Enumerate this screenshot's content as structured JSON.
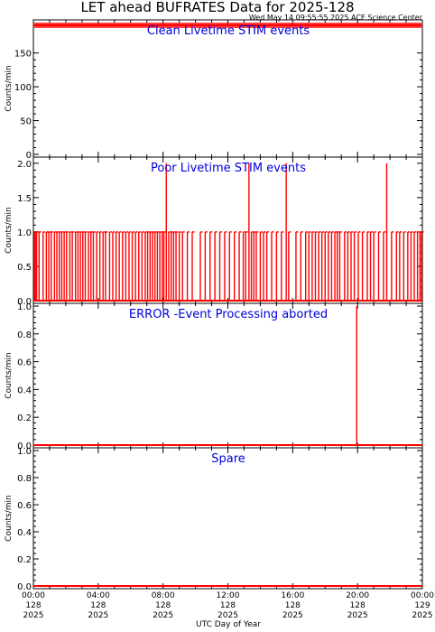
{
  "title": "LET ahead BUFRATES Data for 2025-128",
  "timestamp": "Wed May 14 09:55:55 2025 ACE Science Center",
  "xlabel": "UTC Day of Year",
  "colors": {
    "trace": "#ff0000",
    "panel_title": "#0000dd",
    "axes": "#000000"
  },
  "x_ticks": [
    {
      "hour": 0,
      "time": "00:00",
      "doy": "128",
      "year": "2025"
    },
    {
      "hour": 4,
      "time": "04:00",
      "doy": "128",
      "year": "2025"
    },
    {
      "hour": 8,
      "time": "08:00",
      "doy": "128",
      "year": "2025"
    },
    {
      "hour": 12,
      "time": "12:00",
      "doy": "128",
      "year": "2025"
    },
    {
      "hour": 16,
      "time": "16:00",
      "doy": "128",
      "year": "2025"
    },
    {
      "hour": 20,
      "time": "20:00",
      "doy": "128",
      "year": "2025"
    },
    {
      "hour": 24,
      "time": "00:00",
      "doy": "129",
      "year": "2025"
    }
  ],
  "chart_data": [
    {
      "type": "line",
      "title": "Clean Livetime STIM events",
      "ylabel": "Counts/min",
      "ylim": [
        0,
        195
      ],
      "yticks": [
        0,
        50,
        100,
        150
      ],
      "xlim": [
        0,
        24
      ],
      "series": [
        {
          "x": [
            0,
            24
          ],
          "y": [
            191,
            191
          ]
        }
      ]
    },
    {
      "type": "line",
      "title": "Poor Livetime STIM events",
      "ylabel": "Counts/min",
      "ylim": [
        0,
        2.05
      ],
      "yticks": [
        "0.0",
        "0.5",
        "1.0",
        "1.5",
        "2.0"
      ],
      "xlim": [
        0,
        24
      ],
      "baseline": 0,
      "spikes": [
        [
          0.05,
          1
        ],
        [
          0.12,
          1
        ],
        [
          0.2,
          1
        ],
        [
          0.35,
          1
        ],
        [
          0.6,
          1
        ],
        [
          0.8,
          1
        ],
        [
          0.95,
          1
        ],
        [
          1.1,
          1
        ],
        [
          1.3,
          1
        ],
        [
          1.45,
          1
        ],
        [
          1.6,
          1
        ],
        [
          1.75,
          1
        ],
        [
          1.9,
          1
        ],
        [
          2.05,
          1
        ],
        [
          2.25,
          1
        ],
        [
          2.4,
          1
        ],
        [
          2.6,
          1
        ],
        [
          2.75,
          1
        ],
        [
          2.9,
          1
        ],
        [
          3.05,
          1
        ],
        [
          3.2,
          1
        ],
        [
          3.4,
          1
        ],
        [
          3.55,
          1
        ],
        [
          3.7,
          1
        ],
        [
          3.9,
          1
        ],
        [
          4.1,
          1
        ],
        [
          4.3,
          1
        ],
        [
          4.45,
          1
        ],
        [
          4.7,
          1
        ],
        [
          4.9,
          1
        ],
        [
          5.1,
          1
        ],
        [
          5.3,
          1
        ],
        [
          5.5,
          1
        ],
        [
          5.7,
          1
        ],
        [
          5.9,
          1
        ],
        [
          6.1,
          1
        ],
        [
          6.3,
          1
        ],
        [
          6.5,
          1
        ],
        [
          6.7,
          1
        ],
        [
          6.9,
          1
        ],
        [
          7.05,
          1
        ],
        [
          7.2,
          1
        ],
        [
          7.35,
          1
        ],
        [
          7.5,
          1
        ],
        [
          7.65,
          1
        ],
        [
          7.8,
          1
        ],
        [
          7.95,
          1
        ],
        [
          8.05,
          1
        ],
        [
          8.2,
          2
        ],
        [
          8.35,
          1
        ],
        [
          8.5,
          1
        ],
        [
          8.65,
          1
        ],
        [
          8.8,
          1
        ],
        [
          9.0,
          1
        ],
        [
          9.2,
          1
        ],
        [
          9.5,
          1
        ],
        [
          9.8,
          1
        ],
        [
          10.3,
          1
        ],
        [
          10.6,
          1
        ],
        [
          10.9,
          1
        ],
        [
          11.2,
          1
        ],
        [
          11.5,
          1
        ],
        [
          11.8,
          1
        ],
        [
          12.1,
          1
        ],
        [
          12.4,
          1
        ],
        [
          12.7,
          1
        ],
        [
          12.95,
          1
        ],
        [
          13.1,
          1
        ],
        [
          13.3,
          2
        ],
        [
          13.45,
          1
        ],
        [
          13.6,
          1
        ],
        [
          13.75,
          1
        ],
        [
          14.0,
          1
        ],
        [
          14.2,
          1
        ],
        [
          14.4,
          1
        ],
        [
          14.7,
          1
        ],
        [
          15.0,
          1
        ],
        [
          15.3,
          1
        ],
        [
          15.6,
          2
        ],
        [
          15.75,
          1
        ],
        [
          16.2,
          1
        ],
        [
          16.5,
          1
        ],
        [
          16.8,
          1
        ],
        [
          17.0,
          1
        ],
        [
          17.2,
          1
        ],
        [
          17.4,
          1
        ],
        [
          17.6,
          1
        ],
        [
          17.8,
          1
        ],
        [
          18.0,
          1
        ],
        [
          18.2,
          1
        ],
        [
          18.4,
          1
        ],
        [
          18.6,
          1
        ],
        [
          18.75,
          1
        ],
        [
          18.9,
          1
        ],
        [
          19.2,
          1
        ],
        [
          19.4,
          1
        ],
        [
          19.6,
          1
        ],
        [
          19.8,
          1
        ],
        [
          20.05,
          1
        ],
        [
          20.3,
          1
        ],
        [
          20.6,
          1
        ],
        [
          20.8,
          1
        ],
        [
          21.0,
          1
        ],
        [
          21.3,
          1
        ],
        [
          21.6,
          1
        ],
        [
          21.8,
          2
        ],
        [
          22.1,
          1
        ],
        [
          22.4,
          1
        ],
        [
          22.6,
          1
        ],
        [
          22.85,
          1
        ],
        [
          23.1,
          1
        ],
        [
          23.3,
          1
        ],
        [
          23.5,
          1
        ],
        [
          23.7,
          1
        ],
        [
          23.85,
          1
        ],
        [
          23.95,
          1
        ]
      ]
    },
    {
      "type": "line",
      "title": "ERROR -Event Processing aborted",
      "ylabel": "Counts/min",
      "ylim": [
        0,
        1.0
      ],
      "yticks": [
        "0.0",
        "0.2",
        "0.4",
        "0.6",
        "0.8",
        "1.0"
      ],
      "xlim": [
        0,
        24
      ],
      "baseline": 0,
      "spikes": [
        [
          19.95,
          1
        ]
      ]
    },
    {
      "type": "line",
      "title": "Spare",
      "ylabel": "Counts/min",
      "ylim": [
        0,
        1.0
      ],
      "yticks": [
        "0.0",
        "0.2",
        "0.4",
        "0.6",
        "0.8",
        "1.0"
      ],
      "xlim": [
        0,
        24
      ],
      "baseline": 0,
      "spikes": []
    }
  ]
}
